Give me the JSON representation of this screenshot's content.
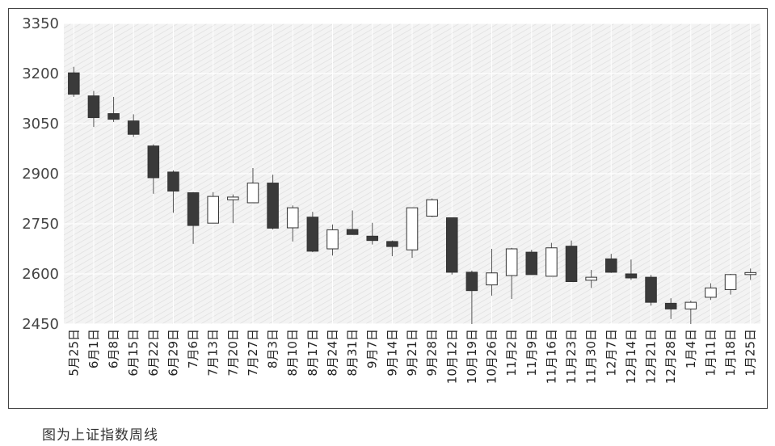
{
  "caption": "图为上证指数周线",
  "chart_data": {
    "type": "candlestick",
    "title": "",
    "xlabel": "",
    "ylabel": "",
    "ylim": [
      2450,
      3350
    ],
    "yticks": [
      2450,
      2600,
      2750,
      2900,
      3050,
      3200,
      3350
    ],
    "grid": true,
    "colors": {
      "down": "#3a3a3a",
      "up": "#ffffff",
      "outline": "#333333",
      "wick": "#555555",
      "plot_bg": "#f2f2f2",
      "grid": "#ffffff"
    },
    "categories": [
      "5月25日",
      "6月1日",
      "6月8日",
      "6月15日",
      "6月22日",
      "6月29日",
      "7月6日",
      "7月13日",
      "7月20日",
      "7月27日",
      "8月3日",
      "8月10日",
      "8月17日",
      "8月24日",
      "8月31日",
      "9月7日",
      "9月14日",
      "9月21日",
      "9月28日",
      "10月12日",
      "10月19日",
      "10月26日",
      "11月2日",
      "11月9日",
      "11月16日",
      "11月23日",
      "11月30日",
      "12月7日",
      "12月14日",
      "12月21日",
      "12月28日",
      "1月4日",
      "1月11日",
      "1月18日",
      "1月25日"
    ],
    "series": [
      {
        "open": 3202,
        "close": 3138,
        "high": 3220,
        "low": 3130
      },
      {
        "open": 3133,
        "close": 3068,
        "high": 3148,
        "low": 3040
      },
      {
        "open": 3080,
        "close": 3063,
        "high": 3130,
        "low": 3055
      },
      {
        "open": 3058,
        "close": 3018,
        "high": 3078,
        "low": 3010
      },
      {
        "open": 2983,
        "close": 2888,
        "high": 2988,
        "low": 2840
      },
      {
        "open": 2905,
        "close": 2848,
        "high": 2910,
        "low": 2783
      },
      {
        "open": 2843,
        "close": 2745,
        "high": 2845,
        "low": 2690
      },
      {
        "open": 2752,
        "close": 2832,
        "high": 2845,
        "low": 2752
      },
      {
        "open": 2822,
        "close": 2830,
        "high": 2838,
        "low": 2752
      },
      {
        "open": 2813,
        "close": 2872,
        "high": 2917,
        "low": 2812
      },
      {
        "open": 2872,
        "close": 2737,
        "high": 2897,
        "low": 2733
      },
      {
        "open": 2738,
        "close": 2798,
        "high": 2805,
        "low": 2697
      },
      {
        "open": 2770,
        "close": 2668,
        "high": 2786,
        "low": 2665
      },
      {
        "open": 2675,
        "close": 2732,
        "high": 2748,
        "low": 2655
      },
      {
        "open": 2733,
        "close": 2718,
        "high": 2790,
        "low": 2717
      },
      {
        "open": 2713,
        "close": 2700,
        "high": 2753,
        "low": 2688
      },
      {
        "open": 2697,
        "close": 2682,
        "high": 2700,
        "low": 2653
      },
      {
        "open": 2672,
        "close": 2798,
        "high": 2798,
        "low": 2648
      },
      {
        "open": 2773,
        "close": 2822,
        "high": 2826,
        "low": 2770
      },
      {
        "open": 2768,
        "close": 2605,
        "high": 2768,
        "low": 2598
      },
      {
        "open": 2605,
        "close": 2550,
        "high": 2610,
        "low": 2450
      },
      {
        "open": 2567,
        "close": 2603,
        "high": 2675,
        "low": 2535
      },
      {
        "open": 2595,
        "close": 2675,
        "high": 2678,
        "low": 2525
      },
      {
        "open": 2665,
        "close": 2598,
        "high": 2672,
        "low": 2597
      },
      {
        "open": 2593,
        "close": 2678,
        "high": 2693,
        "low": 2592
      },
      {
        "open": 2683,
        "close": 2577,
        "high": 2700,
        "low": 2576
      },
      {
        "open": 2581,
        "close": 2590,
        "high": 2612,
        "low": 2558
      },
      {
        "open": 2645,
        "close": 2605,
        "high": 2660,
        "low": 2603
      },
      {
        "open": 2600,
        "close": 2588,
        "high": 2643,
        "low": 2582
      },
      {
        "open": 2590,
        "close": 2515,
        "high": 2597,
        "low": 2505
      },
      {
        "open": 2512,
        "close": 2495,
        "high": 2527,
        "low": 2465
      },
      {
        "open": 2495,
        "close": 2515,
        "high": 2520,
        "low": 2450
      },
      {
        "open": 2530,
        "close": 2558,
        "high": 2572,
        "low": 2522
      },
      {
        "open": 2553,
        "close": 2598,
        "high": 2600,
        "low": 2538
      },
      {
        "open": 2598,
        "close": 2604,
        "high": 2616,
        "low": 2582
      }
    ]
  }
}
